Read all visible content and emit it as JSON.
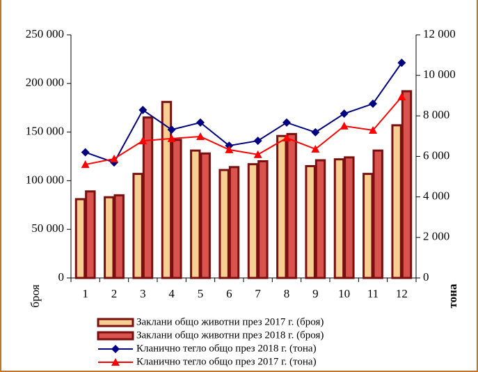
{
  "chart_data": {
    "type": "bar",
    "categories": [
      "1",
      "2",
      "3",
      "4",
      "5",
      "6",
      "7",
      "8",
      "9",
      "10",
      "11",
      "12"
    ],
    "ylabel": "броя",
    "y2label": "тона",
    "ylim": [
      0,
      250000
    ],
    "yticks": [
      {
        "value": 0,
        "label": "0"
      },
      {
        "value": 50000,
        "label": "50 000"
      },
      {
        "value": 100000,
        "label": "100 000"
      },
      {
        "value": 150000,
        "label": "150 000"
      },
      {
        "value": 200000,
        "label": "200 000"
      },
      {
        "value": 250000,
        "label": "250 000"
      }
    ],
    "y2lim": [
      0,
      12000
    ],
    "y2ticks": [
      {
        "value": 0,
        "label": "0"
      },
      {
        "value": 2000,
        "label": "2 000"
      },
      {
        "value": 4000,
        "label": "4 000"
      },
      {
        "value": 6000,
        "label": "6 000"
      },
      {
        "value": 8000,
        "label": "8 000"
      },
      {
        "value": 10000,
        "label": "10 000"
      },
      {
        "value": 12000,
        "label": "12 000"
      }
    ],
    "series": [
      {
        "name": "Заклани общо животни през 2017 г. (броя)",
        "type": "bar",
        "color": "#f7cf93",
        "values": [
          81000,
          83000,
          107000,
          181000,
          131000,
          111000,
          117000,
          146000,
          115000,
          122000,
          107000,
          157000
        ]
      },
      {
        "name": "Заклани общо животни през 2018 г. (броя)",
        "type": "bar",
        "color": "#d9534f",
        "values": [
          89000,
          85000,
          165000,
          142000,
          128000,
          114000,
          120000,
          148000,
          121000,
          124000,
          131000,
          192000
        ]
      },
      {
        "name": "Кланично тегло общо през 2018 г. (тона)",
        "type": "line",
        "marker": "diamond",
        "axis": "y2",
        "color": "#000080",
        "values": [
          6200,
          5700,
          8290,
          7320,
          7670,
          6530,
          6770,
          7670,
          7190,
          8110,
          8600,
          10620
        ]
      },
      {
        "name": "Кланично тегло общо през 2017 г. (тона)",
        "type": "line",
        "marker": "triangle",
        "axis": "y2",
        "color": "#ff0000",
        "values": [
          5600,
          5880,
          6770,
          6880,
          6980,
          6330,
          6090,
          6910,
          6360,
          7500,
          7290,
          8940
        ]
      }
    ]
  }
}
